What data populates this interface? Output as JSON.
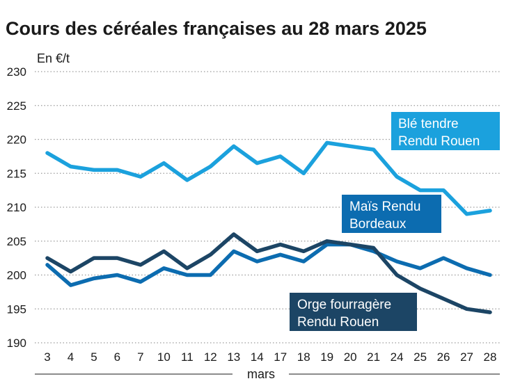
{
  "chart_data": {
    "type": "line",
    "title": "Cours des céréales françaises au 28 mars 2025",
    "ylabel": "En €/t",
    "xlabel": "mars",
    "ylim": [
      190,
      230
    ],
    "yticks": [
      "190",
      "195",
      "200",
      "205",
      "210",
      "215",
      "220",
      "225",
      "230"
    ],
    "categories": [
      "3",
      "4",
      "5",
      "6",
      "7",
      "10",
      "11",
      "12",
      "13",
      "14",
      "17",
      "18",
      "19",
      "20",
      "21",
      "24",
      "25",
      "26",
      "27",
      "28"
    ],
    "grid": true,
    "series": [
      {
        "name": "Blé tendre Rendu Rouen",
        "label_lines": [
          "Blé tendre",
          "Rendu Rouen"
        ],
        "color": "#1ba1dd",
        "values": [
          218,
          216,
          215.5,
          215.5,
          214.5,
          216.5,
          214,
          216,
          219,
          216.5,
          217.5,
          215,
          219.5,
          219,
          218.5,
          214.5,
          212.5,
          212.5,
          209,
          209.5
        ]
      },
      {
        "name": "Maïs Rendu Bordeaux",
        "label_lines": [
          "Maïs Rendu",
          "Bordeaux"
        ],
        "color": "#0c6cb0",
        "values": [
          201.5,
          198.5,
          199.5,
          200,
          199,
          201,
          200,
          200,
          203.5,
          202,
          203,
          202,
          204.5,
          204.5,
          203.5,
          202,
          201,
          202.5,
          201,
          200
        ]
      },
      {
        "name": "Orge fourragère Rendu Rouen",
        "label_lines": [
          "Orge fourragère",
          "Rendu Rouen"
        ],
        "color": "#1c4565",
        "values": [
          202.5,
          200.5,
          202.5,
          202.5,
          201.5,
          203.5,
          201,
          203,
          206,
          203.5,
          204.5,
          203.5,
          205,
          204.5,
          204,
          200,
          198,
          196.5,
          195,
          194.5
        ]
      }
    ]
  }
}
